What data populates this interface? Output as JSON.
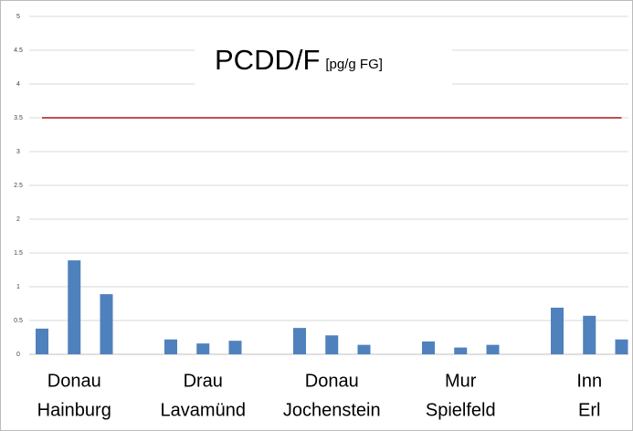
{
  "chart_data": {
    "type": "bar",
    "title": "PCDD/F",
    "subtitle": "[pg/g FG]",
    "groups": [
      {
        "label": [
          "Donau",
          "Hainburg"
        ],
        "values": [
          0.38,
          1.39,
          0.89
        ]
      },
      {
        "label": [
          "Drau",
          "Lavamünd"
        ],
        "values": [
          0.22,
          0.16,
          0.2
        ]
      },
      {
        "label": [
          "Donau",
          "Jochenstein"
        ],
        "values": [
          0.39,
          0.28,
          0.14
        ]
      },
      {
        "label": [
          "Mur",
          "Spielfeld"
        ],
        "values": [
          0.19,
          0.1,
          0.14
        ]
      },
      {
        "label": [
          "Inn",
          "Erl"
        ],
        "values": [
          0.69,
          0.57,
          0.22
        ]
      }
    ],
    "color": "#4f81bd",
    "reference_line": {
      "value": 3.5,
      "color": "#c0504d"
    },
    "ylim": [
      0,
      5
    ],
    "yticks": [
      0,
      0.5,
      1,
      1.5,
      2,
      2.5,
      3,
      3.5,
      4,
      4.5,
      5
    ],
    "grid": true
  }
}
